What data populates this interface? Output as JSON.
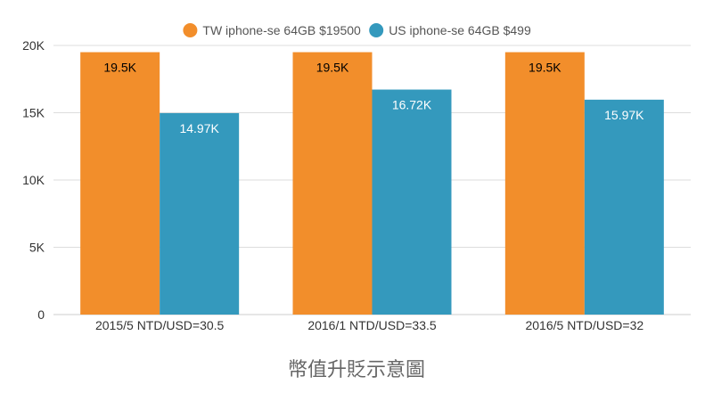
{
  "chart_data": {
    "type": "bar",
    "title": "幣值升貶示意圖",
    "categories": [
      "2015/5 NTD/USD=30.5",
      "2016/1 NTD/USD=33.5",
      "2016/5 NTD/USD=32"
    ],
    "series": [
      {
        "name": "TW iphone-se 64GB $19500",
        "color": "#f28e2b",
        "values": [
          19500,
          19500,
          19500
        ],
        "labels": [
          "19.5K",
          "19.5K",
          "19.5K"
        ],
        "label_color": "#000000"
      },
      {
        "name": "US iphone-se 64GB $499",
        "color": "#3499bd",
        "values": [
          14970,
          16720,
          15970
        ],
        "labels": [
          "14.97K",
          "16.72K",
          "15.97K"
        ],
        "label_color": "#ffffff"
      }
    ],
    "ylim": [
      0,
      20000
    ],
    "yticks": [
      0,
      5000,
      10000,
      15000,
      20000
    ],
    "ytick_labels": [
      "0",
      "5K",
      "10K",
      "15K",
      "20K"
    ],
    "grid": true,
    "legend_position": "top-center",
    "colors": {
      "grid": "#dddddd",
      "axis_text": "#333333",
      "title_text": "#666666",
      "legend_text": "#555555"
    }
  }
}
